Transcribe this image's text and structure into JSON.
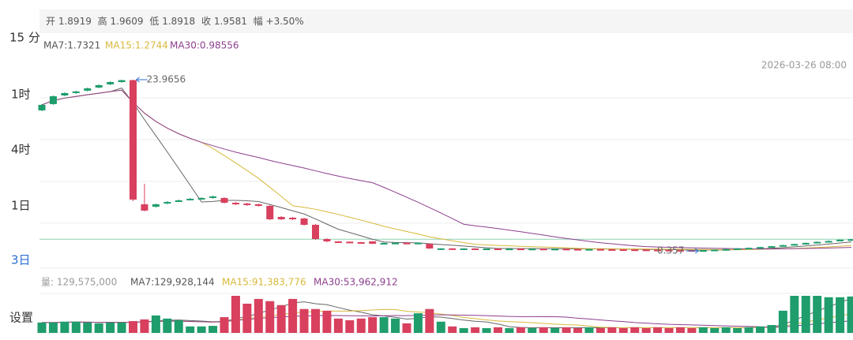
{
  "ui": {
    "timeframes": [
      "15 分",
      "1时",
      "4时",
      "1日",
      "3日"
    ],
    "settings": "设置",
    "ohlc_labels": [
      "开",
      "高",
      "低",
      "收",
      "幅"
    ],
    "change": "+3.50%",
    "ma_legend": [
      "MA7:1.7321",
      "MA15:1.2744",
      "MA30:0.98556"
    ],
    "timestamp": "2026-03-26 08:00",
    "volume_legend": [
      "量: 129,575,000",
      "MA7:129,928,144",
      "MA15:91,383,776",
      "MA30:53,962,912"
    ]
  },
  "chart_data": {
    "type": "candlestick",
    "up_color": "#1f9d6c",
    "down_color": "#d8405e",
    "ma_colors": [
      "#666666",
      "#d8b93c",
      "#8e3f8e"
    ],
    "open": [
      19.73,
      20.6,
      21.79,
      22.12,
      22.45,
      22.88,
      23.32,
      23.64,
      23.9,
      6.78,
      6.45,
      6.89,
      7.21,
      7.43,
      7.54,
      7.65,
      7.65,
      6.99,
      6.89,
      6.78,
      6.56,
      5.04,
      4.93,
      4.82,
      3.95,
      1.99,
      1.66,
      1.62,
      1.55,
      1.66,
      1.34,
      1.45,
      1.48,
      1.45,
      1.34,
      0.68,
      0.7,
      0.68,
      0.69,
      0.67,
      0.68,
      0.66,
      0.67,
      0.65,
      0.66,
      0.64,
      0.65,
      0.62,
      0.6,
      0.61,
      0.58,
      0.57,
      0.55,
      0.54,
      0.52,
      0.5,
      0.48,
      0.46,
      0.42,
      0.45,
      0.52,
      0.6,
      0.7,
      0.78,
      0.88,
      1.0,
      1.15,
      1.3,
      1.45,
      1.6,
      1.72,
      1.8919
    ],
    "high": [
      20.6,
      21.79,
      22.23,
      22.45,
      22.88,
      23.32,
      23.75,
      23.95,
      23.9656,
      9.61,
      6.89,
      7.21,
      7.43,
      7.65,
      7.76,
      7.98,
      7.76,
      7.1,
      7.0,
      6.89,
      6.67,
      5.15,
      5.04,
      4.93,
      4.06,
      2.1,
      1.7,
      1.66,
      1.6,
      1.7,
      1.5,
      1.52,
      1.52,
      1.52,
      1.4,
      0.74,
      0.73,
      0.72,
      0.72,
      0.71,
      0.7,
      0.7,
      0.7,
      0.69,
      0.68,
      0.68,
      0.67,
      0.65,
      0.64,
      0.63,
      0.61,
      0.6,
      0.58,
      0.57,
      0.55,
      0.53,
      0.51,
      0.49,
      0.48,
      0.55,
      0.63,
      0.74,
      0.82,
      0.92,
      1.05,
      1.2,
      1.36,
      1.52,
      1.66,
      1.8,
      1.92,
      1.9609
    ],
    "low": [
      19.62,
      20.49,
      21.68,
      22.01,
      22.34,
      22.77,
      23.21,
      23.53,
      7.21,
      5.8,
      6.34,
      6.78,
      7.1,
      7.32,
      7.43,
      7.54,
      6.89,
      6.67,
      6.56,
      6.45,
      4.6,
      4.6,
      4.6,
      3.84,
      1.88,
      1.55,
      1.55,
      1.5,
      1.45,
      1.3,
      1.3,
      1.4,
      1.4,
      1.42,
      0.62,
      0.64,
      0.65,
      0.65,
      0.64,
      0.64,
      0.63,
      0.63,
      0.62,
      0.62,
      0.61,
      0.61,
      0.6,
      0.58,
      0.57,
      0.55,
      0.54,
      0.52,
      0.51,
      0.49,
      0.47,
      0.45,
      0.43,
      0.4,
      0.357,
      0.43,
      0.5,
      0.58,
      0.68,
      0.76,
      0.86,
      0.98,
      1.12,
      1.28,
      1.42,
      1.56,
      1.7,
      1.8918
    ],
    "close": [
      20.49,
      21.68,
      22.12,
      22.34,
      22.77,
      23.21,
      23.64,
      23.9,
      7.43,
      5.91,
      6.78,
      7.1,
      7.32,
      7.54,
      7.65,
      7.87,
      6.99,
      6.78,
      6.67,
      6.56,
      4.71,
      4.71,
      4.71,
      3.95,
      1.99,
      1.66,
      1.62,
      1.55,
      1.5,
      1.34,
      1.45,
      1.48,
      1.45,
      1.48,
      0.68,
      0.7,
      0.68,
      0.69,
      0.67,
      0.68,
      0.66,
      0.67,
      0.65,
      0.66,
      0.64,
      0.65,
      0.62,
      0.6,
      0.61,
      0.58,
      0.57,
      0.55,
      0.54,
      0.52,
      0.5,
      0.48,
      0.46,
      0.44,
      0.45,
      0.52,
      0.6,
      0.7,
      0.78,
      0.88,
      1.0,
      1.15,
      1.3,
      1.45,
      1.6,
      1.72,
      1.8919,
      1.9581
    ],
    "volume": [
      37000000,
      37000000,
      40000000,
      40000000,
      37000000,
      34000000,
      37000000,
      37000000,
      42000000,
      48000000,
      62000000,
      51000000,
      45000000,
      23000000,
      23000000,
      25000000,
      56000000,
      132000000,
      104000000,
      121000000,
      113000000,
      99000000,
      121000000,
      85000000,
      85000000,
      79000000,
      51000000,
      45000000,
      51000000,
      56000000,
      56000000,
      51000000,
      34000000,
      70000000,
      85000000,
      40000000,
      23000000,
      17000000,
      20000000,
      17000000,
      20000000,
      17000000,
      20000000,
      17000000,
      20000000,
      17000000,
      20000000,
      17000000,
      20000000,
      17000000,
      20000000,
      17000000,
      20000000,
      17000000,
      20000000,
      17000000,
      20000000,
      17000000,
      20000000,
      17000000,
      20000000,
      17000000,
      20000000,
      23000000,
      28000000,
      79000000,
      132000000,
      132000000,
      132000000,
      127000000,
      127000000,
      129575000
    ]
  }
}
